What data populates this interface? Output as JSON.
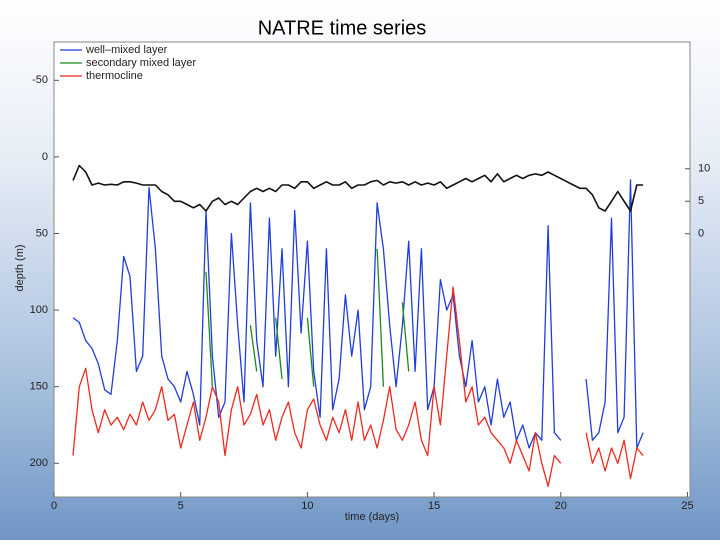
{
  "chart_data": {
    "type": "line",
    "title": "NATRE time series",
    "xlabel": "time (days)",
    "ylabel": "depth (m)",
    "x": [
      0.75,
      1,
      1.25,
      1.5,
      1.75,
      2,
      2.25,
      2.5,
      2.75,
      3,
      3.25,
      3.5,
      3.75,
      4,
      4.25,
      4.5,
      4.75,
      5,
      5.25,
      5.5,
      5.75,
      6,
      6.25,
      6.5,
      6.75,
      7,
      7.25,
      7.5,
      7.75,
      8,
      8.25,
      8.5,
      8.75,
      9,
      9.25,
      9.5,
      9.75,
      10,
      10.25,
      10.5,
      10.75,
      11,
      11.25,
      11.5,
      11.75,
      12,
      12.25,
      12.5,
      12.75,
      13,
      13.25,
      13.5,
      13.75,
      14,
      14.25,
      14.5,
      14.75,
      15,
      15.25,
      15.5,
      15.75,
      16,
      16.25,
      16.5,
      16.75,
      17,
      17.25,
      17.5,
      17.75,
      18,
      18.25,
      18.5,
      18.75,
      19,
      19.25,
      19.5,
      19.75,
      20,
      20.25,
      20.5,
      20.75,
      21,
      21.25,
      21.5,
      21.75,
      22,
      22.25,
      22.5,
      22.75,
      23,
      23.25
    ],
    "series": [
      {
        "name": "well–mixed layer",
        "color": "#1f3fd6",
        "values": [
          105,
          108,
          120,
          125,
          135,
          152,
          155,
          120,
          65,
          78,
          140,
          130,
          20,
          60,
          130,
          145,
          150,
          160,
          140,
          155,
          175,
          35,
          130,
          170,
          160,
          50,
          110,
          160,
          30,
          120,
          150,
          40,
          130,
          60,
          150,
          35,
          115,
          55,
          140,
          170,
          60,
          165,
          145,
          90,
          130,
          100,
          165,
          150,
          30,
          60,
          110,
          150,
          110,
          55,
          140,
          60,
          165,
          150,
          80,
          100,
          90,
          130,
          150,
          120,
          160,
          150,
          175,
          145,
          170,
          160,
          185,
          175,
          190,
          180,
          185,
          45,
          180,
          185,
          null,
          null,
          null,
          145,
          185,
          180,
          160,
          40,
          180,
          170,
          15,
          190,
          180
        ]
      },
      {
        "name": "secondary mixed layer",
        "color": "#1a8a1a",
        "values": [
          null,
          null,
          null,
          null,
          null,
          null,
          null,
          null,
          null,
          null,
          null,
          null,
          null,
          null,
          null,
          null,
          null,
          null,
          null,
          null,
          null,
          75,
          150,
          null,
          null,
          null,
          null,
          null,
          110,
          140,
          null,
          null,
          105,
          145,
          null,
          null,
          null,
          105,
          150,
          null,
          null,
          null,
          null,
          null,
          null,
          null,
          null,
          null,
          60,
          150,
          null,
          null,
          95,
          140,
          null,
          null,
          null,
          null,
          null,
          null,
          null,
          null,
          null,
          null,
          null,
          null,
          null,
          null,
          null,
          null,
          null,
          null,
          null,
          null,
          null,
          null,
          null,
          null,
          null,
          null,
          null,
          null,
          null,
          null,
          null,
          null,
          null,
          null,
          null,
          null,
          null
        ]
      },
      {
        "name": "thermocline",
        "color": "#ee2a1e",
        "values": [
          195,
          150,
          138,
          165,
          180,
          165,
          175,
          170,
          178,
          168,
          175,
          160,
          172,
          165,
          150,
          172,
          168,
          190,
          175,
          160,
          185,
          170,
          150,
          160,
          195,
          165,
          150,
          175,
          168,
          155,
          175,
          165,
          185,
          170,
          160,
          180,
          190,
          165,
          158,
          175,
          185,
          170,
          180,
          165,
          185,
          160,
          185,
          175,
          190,
          172,
          150,
          178,
          185,
          175,
          160,
          185,
          195,
          150,
          175,
          130,
          85,
          120,
          160,
          150,
          175,
          170,
          180,
          185,
          190,
          200,
          185,
          195,
          205,
          180,
          200,
          215,
          195,
          200,
          null,
          null,
          null,
          180,
          200,
          190,
          205,
          190,
          200,
          185,
          210,
          190,
          195
        ]
      },
      {
        "color": "#111111",
        "axis": "y2",
        "values": [
          8.2,
          10.5,
          9.5,
          7.5,
          7.8,
          7.5,
          7.6,
          7.5,
          8,
          8,
          7.8,
          7.5,
          7.5,
          7.5,
          6.5,
          6,
          5,
          5,
          4.5,
          4,
          4.5,
          3.5,
          5,
          5.5,
          4.5,
          5,
          4.5,
          5.5,
          6.5,
          7,
          6.5,
          7,
          6.5,
          7.5,
          7.5,
          7,
          8,
          8,
          7,
          7.5,
          8,
          7.5,
          7.5,
          8,
          7,
          7.5,
          7.5,
          8,
          8.2,
          7.5,
          8,
          7.8,
          8,
          7.5,
          8,
          7.5,
          7.8,
          7.5,
          8,
          7,
          7.5,
          8,
          8.5,
          8,
          8.5,
          9,
          8,
          9.2,
          8,
          8.5,
          9,
          8.5,
          9,
          9.2,
          9,
          9.5,
          9,
          8.5,
          8,
          7.5,
          7,
          7,
          6,
          4,
          3.5,
          5,
          6.5,
          5,
          3.5,
          7.5,
          7.5
        ]
      }
    ],
    "xlim": [
      0,
      25.1
    ],
    "xticks": [
      0,
      5,
      10,
      15,
      20,
      25
    ],
    "ylim": [
      -75,
      222
    ],
    "y_inverted": true,
    "yticks": [
      -50,
      0,
      50,
      100,
      150,
      200
    ],
    "y2lim": [
      -40.5,
      29.5
    ],
    "y2ticks": [
      0,
      5,
      10
    ],
    "grid": false,
    "legend": "upper left"
  }
}
